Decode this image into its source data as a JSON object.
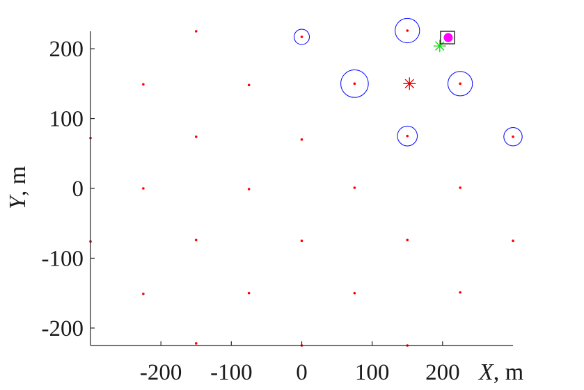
{
  "chart_data": {
    "type": "scatter",
    "xlabel_var": "X",
    "xlabel_unit": ", m",
    "ylabel_var": "Y",
    "ylabel_unit": ", m",
    "xlim": [
      -300,
      300
    ],
    "ylim": [
      -225,
      225
    ],
    "xticks": [
      -200,
      -100,
      0,
      100,
      200
    ],
    "yticks": [
      -200,
      -100,
      0,
      100,
      200
    ],
    "xtick_labels": [
      "-200",
      "-100",
      "0",
      "100",
      "200"
    ],
    "ytick_labels": [
      "-200",
      "-100",
      "0",
      "100",
      "200"
    ],
    "grid": false,
    "colors": {
      "grid_points": "#ff0000",
      "rings": "#0000ff",
      "red_star": "#e00000",
      "green_star": "#00dd00",
      "magenta_dot": "#ff00ff",
      "square": "#000000"
    },
    "series": [
      {
        "marker": "dot",
        "color": "#ff0000",
        "points": [
          [
            -150,
            225
          ],
          [
            0,
            217
          ],
          [
            150,
            226
          ],
          [
            -225,
            149
          ],
          [
            -75,
            148
          ],
          [
            75,
            150
          ],
          [
            225,
            150
          ],
          [
            -300,
            72
          ],
          [
            -150,
            74
          ],
          [
            0,
            70
          ],
          [
            150,
            75
          ],
          [
            300,
            74
          ],
          [
            -225,
            0
          ],
          [
            -75,
            -1
          ],
          [
            75,
            1
          ],
          [
            225,
            1
          ],
          [
            -300,
            -76
          ],
          [
            -150,
            -74
          ],
          [
            0,
            -75
          ],
          [
            150,
            -74
          ],
          [
            300,
            -75
          ],
          [
            -225,
            -151
          ],
          [
            -75,
            -150
          ],
          [
            75,
            -150
          ],
          [
            225,
            -149
          ],
          [
            -150,
            -222
          ],
          [
            0,
            -225
          ],
          [
            150,
            -225
          ]
        ]
      },
      {
        "marker": "circle",
        "color": "#0000ff",
        "points": [
          {
            "x": 0,
            "y": 217,
            "size": 1
          },
          {
            "x": 150,
            "y": 226,
            "size": 1.6
          },
          {
            "x": 75,
            "y": 150,
            "size": 1.8
          },
          {
            "x": 225,
            "y": 150,
            "size": 1.6
          },
          {
            "x": 150,
            "y": 75,
            "size": 1.3
          },
          {
            "x": 300,
            "y": 74,
            "size": 1.2
          }
        ]
      },
      {
        "marker": "star",
        "color": "#e00000",
        "points": [
          [
            153,
            150
          ]
        ]
      },
      {
        "marker": "star",
        "color": "#00dd00",
        "points": [
          [
            196,
            204
          ]
        ]
      },
      {
        "marker": "filled-circle",
        "color": "#ff00ff",
        "points": [
          [
            208,
            216
          ]
        ]
      },
      {
        "marker": "square",
        "color": "#000000",
        "points": [
          [
            208,
            216
          ]
        ]
      }
    ]
  }
}
